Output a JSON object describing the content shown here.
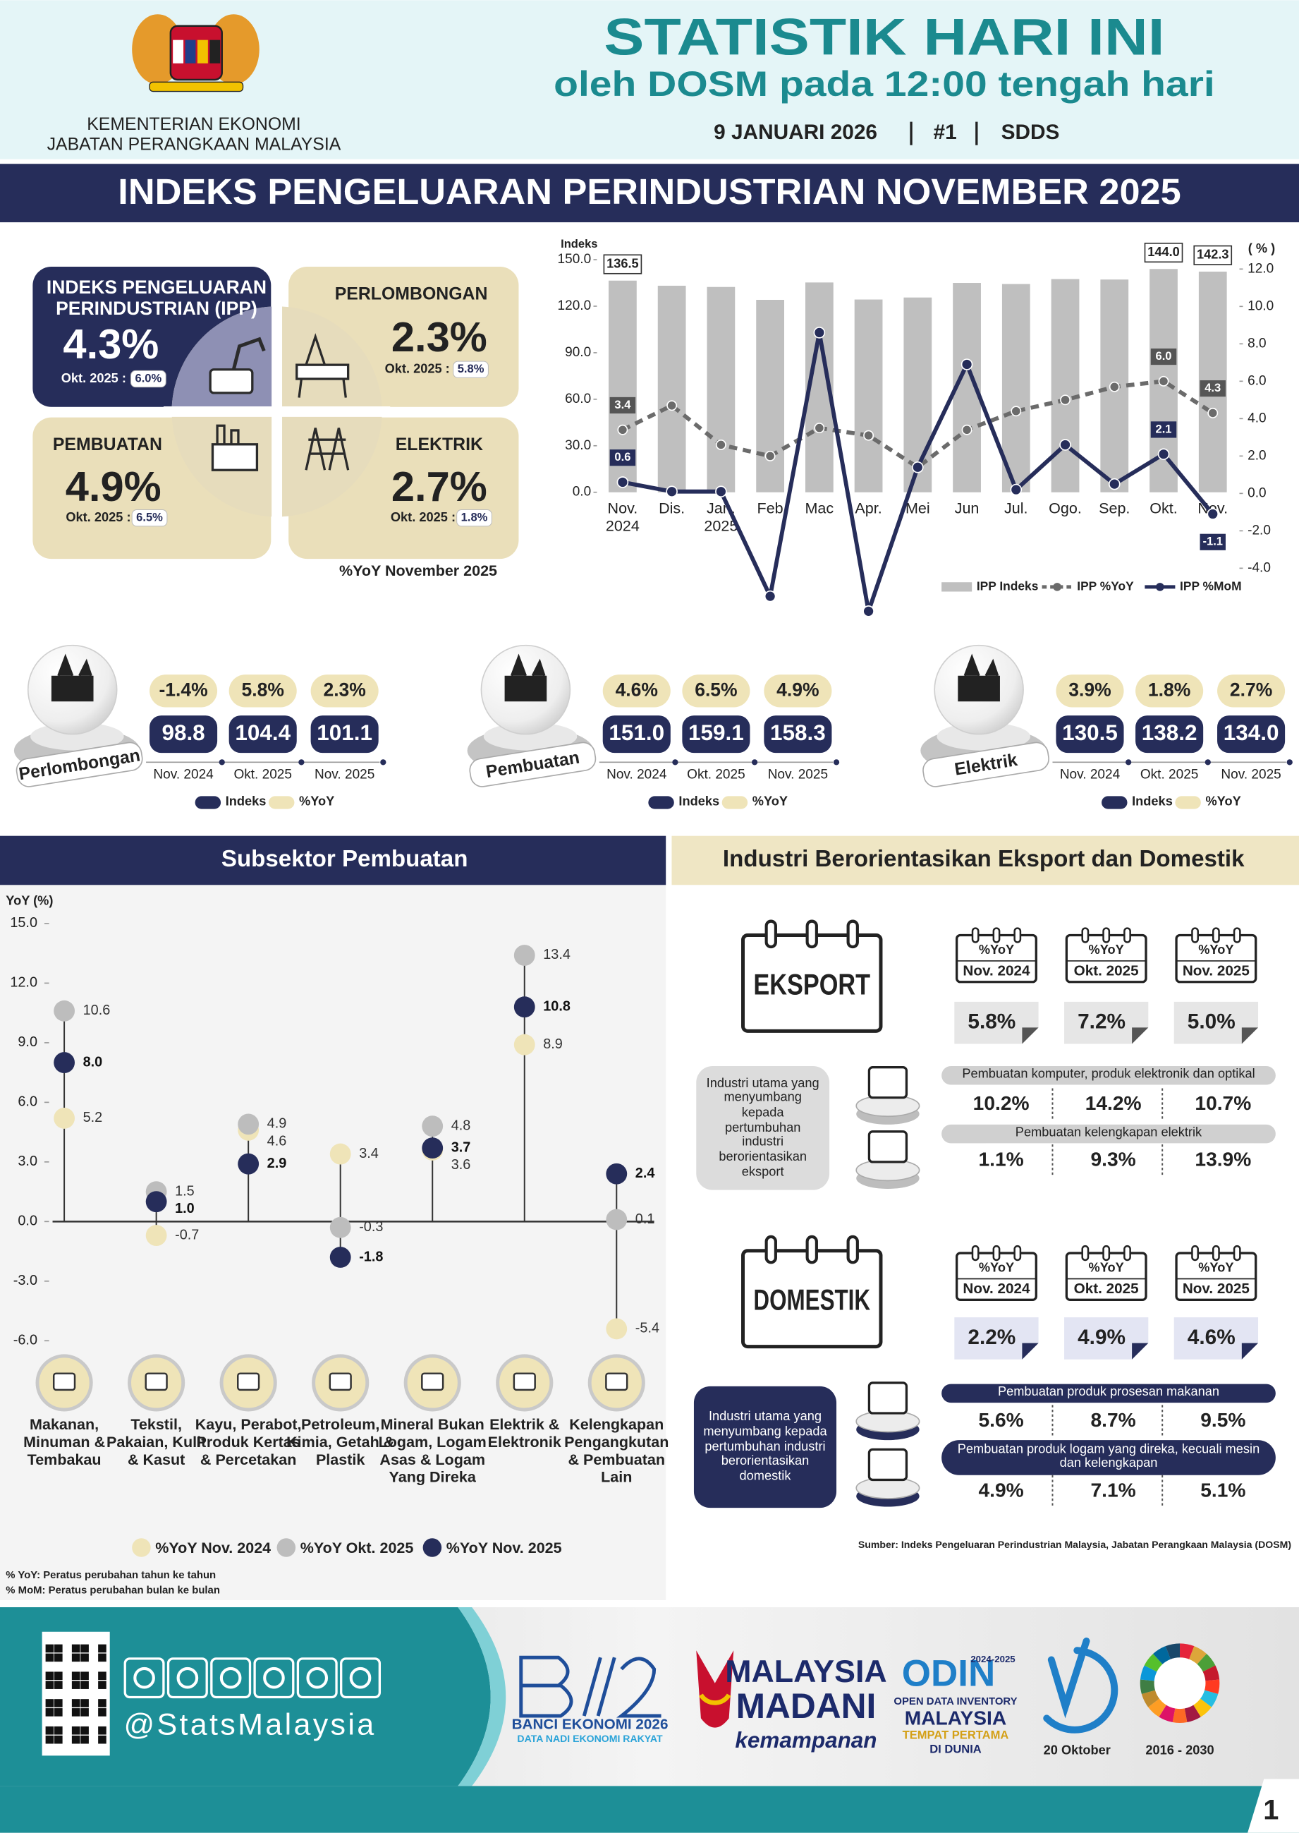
{
  "header": {
    "ministry": [
      "KEMENTERIAN EKONOMI",
      "JABATAN PERANGKAAN MALAYSIA"
    ],
    "title": "STATISTIK HARI INI",
    "subtitle": "oleh DOSM pada 12:00 tengah hari",
    "date": "9 JANUARI 2026",
    "issue": "#1",
    "tag": "SDDS"
  },
  "banner": "INDEKS PENGELUARAN PERINDUSTRIAN NOVEMBER 2025",
  "kpis": [
    {
      "label": "INDEKS PENGELUARAN PERINDUSTRIAN (IPP)",
      "value": "4.3%",
      "prev_label": "Okt. 2025 :",
      "prev_value": "6.0%"
    },
    {
      "label": "PERLOMBONGAN",
      "value": "2.3%",
      "prev_label": "Okt. 2025 :",
      "prev_value": "5.8%"
    },
    {
      "label": "PEMBUATAN",
      "value": "4.9%",
      "prev_label": "Okt. 2025 :",
      "prev_value": "6.5%"
    },
    {
      "label": "ELEKTRIK",
      "value": "2.7%",
      "prev_label": "Okt. 2025 :",
      "prev_value": "1.8%"
    }
  ],
  "kpi_note": "%YoY November 2025",
  "sectors": [
    {
      "name": "Perlombongan",
      "periods": [
        "Nov. 2024",
        "Okt. 2025",
        "Nov. 2025"
      ],
      "index": [
        "98.8",
        "104.4",
        "101.1"
      ],
      "yoy": [
        "-1.4%",
        "5.8%",
        "2.3%"
      ]
    },
    {
      "name": "Pembuatan",
      "periods": [
        "Nov. 2024",
        "Okt. 2025",
        "Nov. 2025"
      ],
      "index": [
        "151.0",
        "159.1",
        "158.3"
      ],
      "yoy": [
        "4.6%",
        "6.5%",
        "4.9%"
      ]
    },
    {
      "name": "Elektrik",
      "periods": [
        "Nov. 2024",
        "Okt. 2025",
        "Nov. 2025"
      ],
      "index": [
        "130.5",
        "138.2",
        "134.0"
      ],
      "yoy": [
        "3.9%",
        "1.8%",
        "2.7%"
      ]
    }
  ],
  "sector_legend": [
    "Indeks",
    "%YoY"
  ],
  "chart_data": [
    {
      "type": "combo",
      "ylabel": "Indeks",
      "y2label": "( % )",
      "categories": [
        "Nov. 2024",
        "Dis.",
        "Jan. 2025",
        "Feb",
        "Mac",
        "Apr.",
        "Mei",
        "Jun",
        "Jul.",
        "Ogo.",
        "Sep.",
        "Okt.",
        "Nov."
      ],
      "series": [
        {
          "name": "IPP Indeks",
          "type": "bar",
          "color": "#bfbfbf",
          "values": [
            136.5,
            133.2,
            132.4,
            124.1,
            135.3,
            124.3,
            125.6,
            135.0,
            134.3,
            137.5,
            137.2,
            144.0,
            142.3
          ],
          "value_labels": [
            "136.5",
            null,
            null,
            null,
            null,
            null,
            null,
            null,
            null,
            null,
            null,
            "144.0",
            "142.3"
          ]
        },
        {
          "name": "IPP %YoY",
          "type": "line",
          "dash": true,
          "axis": "y2",
          "color": "#6b6b6b",
          "values": [
            3.4,
            4.7,
            2.6,
            2.0,
            3.5,
            3.1,
            1.4,
            3.4,
            4.4,
            5.0,
            5.7,
            6.0,
            4.3
          ],
          "value_labels": [
            "3.4",
            null,
            null,
            null,
            null,
            null,
            null,
            null,
            null,
            null,
            null,
            "6.0",
            "4.3"
          ]
        },
        {
          "name": "IPP %MoM",
          "type": "line",
          "axis": "y2",
          "color": "#262d5a",
          "values": [
            0.6,
            0.1,
            0.1,
            -5.5,
            8.6,
            -6.3,
            1.4,
            6.9,
            0.2,
            2.6,
            0.5,
            2.1,
            -1.1
          ],
          "value_labels": [
            "0.6",
            null,
            null,
            null,
            null,
            null,
            null,
            null,
            null,
            null,
            null,
            "2.1",
            "-1.1"
          ]
        }
      ],
      "ylim": [
        0,
        150
      ],
      "yticks": [
        {
          "value": 0,
          "label": "0.0"
        },
        {
          "value": 30,
          "label": "30.0"
        },
        {
          "value": 60,
          "label": "60.0"
        },
        {
          "value": 90,
          "label": "90.0"
        },
        {
          "value": 120,
          "label": "120.0"
        },
        {
          "value": 150,
          "label": "150.0"
        }
      ],
      "y2lim": [
        -4,
        12
      ],
      "y2ticks": [
        {
          "value": -4,
          "label": "-4.0"
        },
        {
          "value": -2,
          "label": "-2.0"
        },
        {
          "value": 0,
          "label": "0.0"
        },
        {
          "value": 2,
          "label": "2.0"
        },
        {
          "value": 4,
          "label": "4.0"
        },
        {
          "value": 6,
          "label": "6.0"
        },
        {
          "value": 8,
          "label": "8.0"
        },
        {
          "value": 10,
          "label": "10.0"
        },
        {
          "value": 12,
          "label": "12.0"
        }
      ]
    },
    {
      "type": "dot",
      "title": "Subsektor Pembuatan",
      "ylabel": "YoY (%)",
      "categories": [
        "Makanan, Minuman & Tembakau",
        "Tekstil, Pakaian, Kulit & Kasut",
        "Kayu, Perabot, Produk Kertas & Percetakan",
        "Petroleum, Kimia, Getah & Plastik",
        "Mineral Bukan Logam, Logam Asas & Logam Yang Direka",
        "Elektrik & Elektronik",
        "Kelengkapan Pengangkutan & Pembuatan Lain"
      ],
      "series": [
        {
          "name": "%YoY Nov. 2024",
          "color": "#efe4b8",
          "values": [
            5.2,
            -0.7,
            4.6,
            3.4,
            3.6,
            8.9,
            -5.4
          ],
          "value_labels": [
            "5.2",
            "-0.7",
            "4.6",
            "3.4",
            "3.6",
            "8.9",
            "-5.4"
          ]
        },
        {
          "name": "%YoY Okt. 2025",
          "color": "#bdbdbd",
          "values": [
            10.6,
            1.5,
            4.9,
            -0.3,
            4.8,
            13.4,
            0.1
          ],
          "value_labels": [
            "10.6",
            "1.5",
            "4.9",
            "-0.3",
            "4.8",
            "13.4",
            "0.1"
          ]
        },
        {
          "name": "%YoY Nov. 2025",
          "color": "#262d5a",
          "values": [
            8.0,
            1.0,
            2.9,
            -1.8,
            3.7,
            10.8,
            2.4
          ],
          "value_labels": [
            "8.0",
            "1.0",
            "2.9",
            "-1.8",
            "3.7",
            "10.8",
            "2.4"
          ]
        }
      ],
      "ylim": [
        -6,
        15
      ],
      "yticks": [
        {
          "value": -6,
          "label": "-6.0"
        },
        {
          "value": -3,
          "label": "-3.0"
        },
        {
          "value": 0,
          "label": "0.0"
        },
        {
          "value": 3,
          "label": "3.0"
        },
        {
          "value": 6,
          "label": "6.0"
        },
        {
          "value": 9,
          "label": "9.0"
        },
        {
          "value": 12,
          "label": "12.0"
        },
        {
          "value": 15,
          "label": "15.0"
        }
      ]
    }
  ],
  "footnotes": [
    "% YoY: Peratus perubahan tahun ke tahun",
    "% MoM: Peratus perubahan bulan ke bulan"
  ],
  "trade": {
    "title": "Industri Berorientasikan Eksport dan Domestik",
    "groups": [
      {
        "name": "EKSPORT",
        "periods": [
          {
            "unit": "%YoY",
            "label": "Nov. 2024"
          },
          {
            "unit": "%YoY",
            "label": "Okt. 2025"
          },
          {
            "unit": "%YoY",
            "label": "Nov. 2025"
          }
        ],
        "yoy": [
          "5.8%",
          "7.2%",
          "5.0%"
        ],
        "note": "Industri utama yang menyumbang kepada pertumbuhan industri berorientasikan eksport",
        "industries": [
          {
            "name": "Pembuatan komputer, produk elektronik dan optikal",
            "values": [
              "10.2%",
              "14.2%",
              "10.7%"
            ]
          },
          {
            "name": "Pembuatan kelengkapan elektrik",
            "values": [
              "1.1%",
              "9.3%",
              "13.9%"
            ]
          }
        ]
      },
      {
        "name": "DOMESTIK",
        "periods": [
          {
            "unit": "%YoY",
            "label": "Nov. 2024"
          },
          {
            "unit": "%YoY",
            "label": "Okt. 2025"
          },
          {
            "unit": "%YoY",
            "label": "Nov. 2025"
          }
        ],
        "yoy": [
          "2.2%",
          "4.9%",
          "4.6%"
        ],
        "note": "Industri utama yang menyumbang kepada pertumbuhan industri berorientasikan domestik",
        "industries": [
          {
            "name": "Pembuatan produk prosesan makanan",
            "values": [
              "5.6%",
              "8.7%",
              "9.5%"
            ]
          },
          {
            "name": "Pembuatan produk logam yang direka, kecuali mesin dan kelengkapan",
            "values": [
              "4.9%",
              "7.1%",
              "5.1%"
            ]
          }
        ]
      }
    ],
    "source": "Sumber: Indeks Pengeluaran Perindustrian Malaysia, Jabatan Perangkaan Malaysia (DOSM)"
  },
  "footer": {
    "handle": "@StatsMalaysia",
    "banci": [
      "BANCI EKONOMI 2026",
      "DATA NADI EKONOMI RAKYAT"
    ],
    "madani": [
      "MALAYSIA",
      "MADANI",
      "kemampanan"
    ],
    "odin": [
      "ODIN",
      "2024-2025",
      "OPEN DATA INVENTORY",
      "MALAYSIA",
      "TEMPAT PERTAMA",
      "DI DUNIA"
    ],
    "hari_statistik": "20 Oktober",
    "sdg": "2016 - 2030",
    "page": "1"
  }
}
